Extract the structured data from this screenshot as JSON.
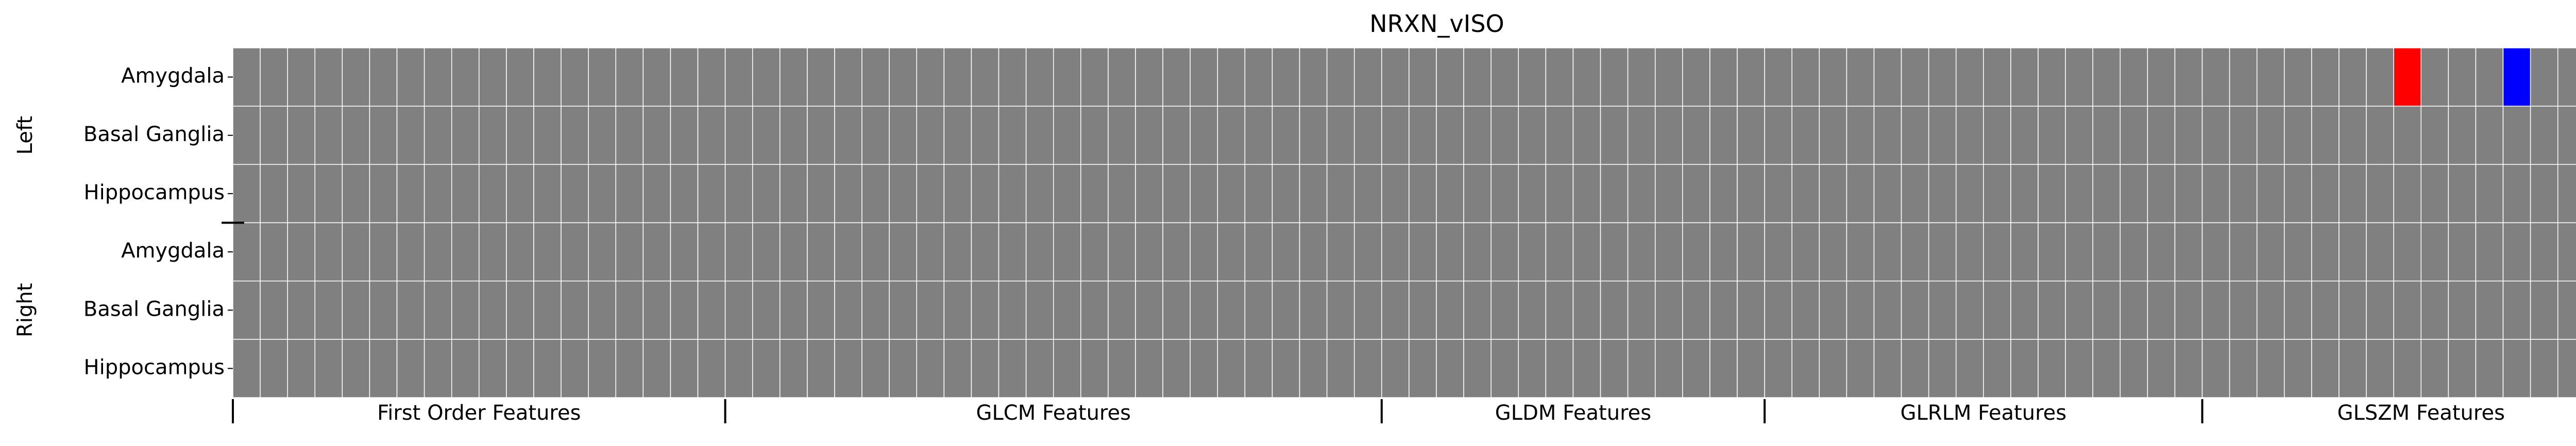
{
  "chart_data": {
    "type": "heatmap",
    "title": "NRXN_vISO",
    "grid": true,
    "background_color": "#808080",
    "grid_color": "#ffffff",
    "highlight_colors": {
      "positive": "#ff0000",
      "negative": "#0000ff"
    },
    "n_columns": 88,
    "row_groups": [
      {
        "label": "Left",
        "rows": [
          "Amygdala",
          "Basal Ganglia",
          "Hippocampus"
        ]
      },
      {
        "label": "Right",
        "rows": [
          "Amygdala",
          "Basal Ganglia",
          "Hippocampus"
        ]
      }
    ],
    "column_groups": [
      {
        "label": "First Order Features",
        "count": 18
      },
      {
        "label": "GLCM Features",
        "count": 24
      },
      {
        "label": "GLDM Features",
        "count": 14
      },
      {
        "label": "GLRLM Features",
        "count": 16
      },
      {
        "label": "GLSZM Features",
        "count": 16
      }
    ],
    "highlighted_cells": [
      {
        "row": 0,
        "col": 79,
        "value": 1,
        "color": "#ff0000"
      },
      {
        "row": 0,
        "col": 83,
        "value": -1,
        "color": "#0000ff"
      }
    ]
  }
}
